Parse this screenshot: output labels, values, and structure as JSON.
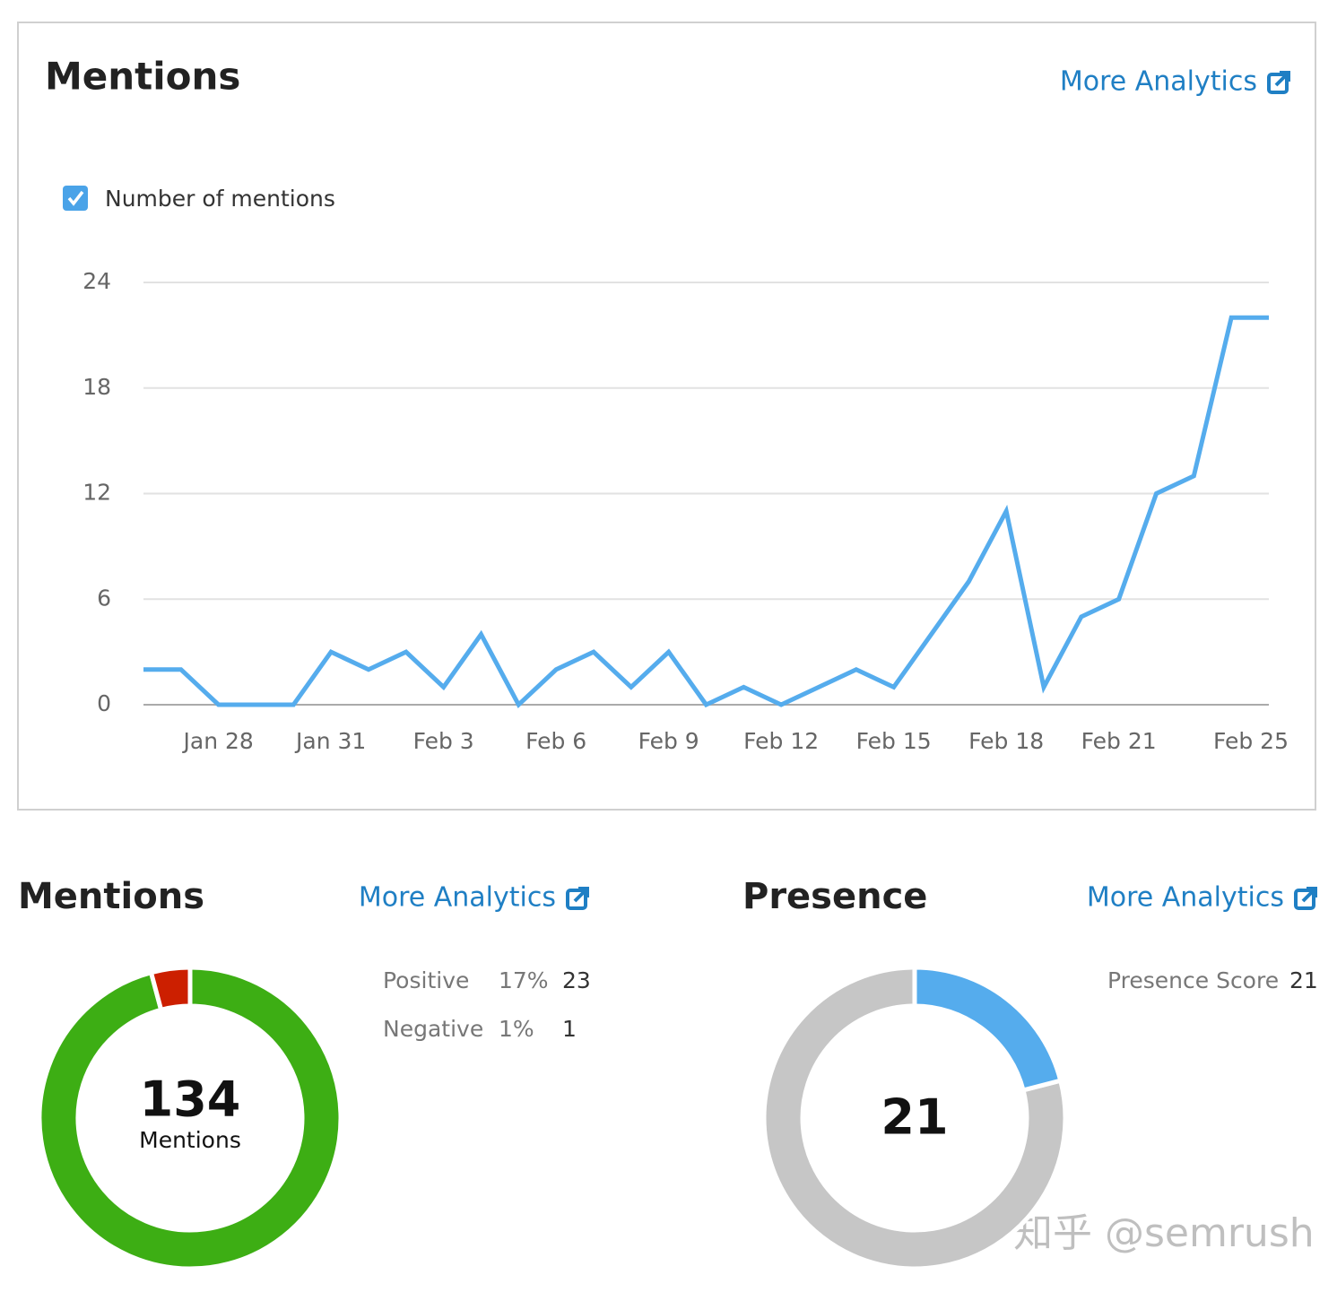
{
  "chart_data": [
    {
      "type": "line",
      "title": "Mentions",
      "link": "More Analytics",
      "categories": [
        null,
        null,
        "Jan 28",
        null,
        null,
        "Jan 31",
        null,
        null,
        "Feb 3",
        null,
        null,
        "Feb 6",
        null,
        null,
        "Feb 9",
        null,
        null,
        "Feb 12",
        null,
        null,
        "Feb 15",
        null,
        null,
        "Feb 18",
        null,
        null,
        "Feb 21",
        null,
        null,
        null,
        "Feb 25"
      ],
      "series": [
        {
          "name": "Number of mentions",
          "color": "#55aced",
          "values": [
            2,
            2,
            0,
            0,
            0,
            3,
            2,
            3,
            1,
            4,
            0,
            2,
            3,
            1,
            3,
            0,
            1,
            0,
            1,
            2,
            1,
            4,
            7,
            11,
            1,
            5,
            6,
            12,
            13,
            22,
            22
          ]
        }
      ],
      "ylim": [
        0,
        24
      ],
      "yticks": [
        0,
        6,
        12,
        18,
        24
      ],
      "grid": true
    },
    {
      "type": "donut",
      "title": "Mentions",
      "link": "More Analytics",
      "total": 134,
      "total_label": "Mentions",
      "categories": [
        "Positive",
        "Negative"
      ],
      "values": [
        23,
        1
      ],
      "shares": [
        17,
        1
      ],
      "share_labels": [
        "17%",
        "1%"
      ],
      "colors": [
        "#3dae14",
        "#cc1f00"
      ]
    },
    {
      "type": "gauge",
      "title": "Presence",
      "link": "More Analytics",
      "categories": [
        "Presence Score"
      ],
      "values": [
        21
      ],
      "center_value": 21,
      "ylim": [
        0,
        100
      ],
      "colors": [
        "#55aced",
        "#c6c6c6"
      ]
    }
  ],
  "watermark": "知乎 @semrush"
}
